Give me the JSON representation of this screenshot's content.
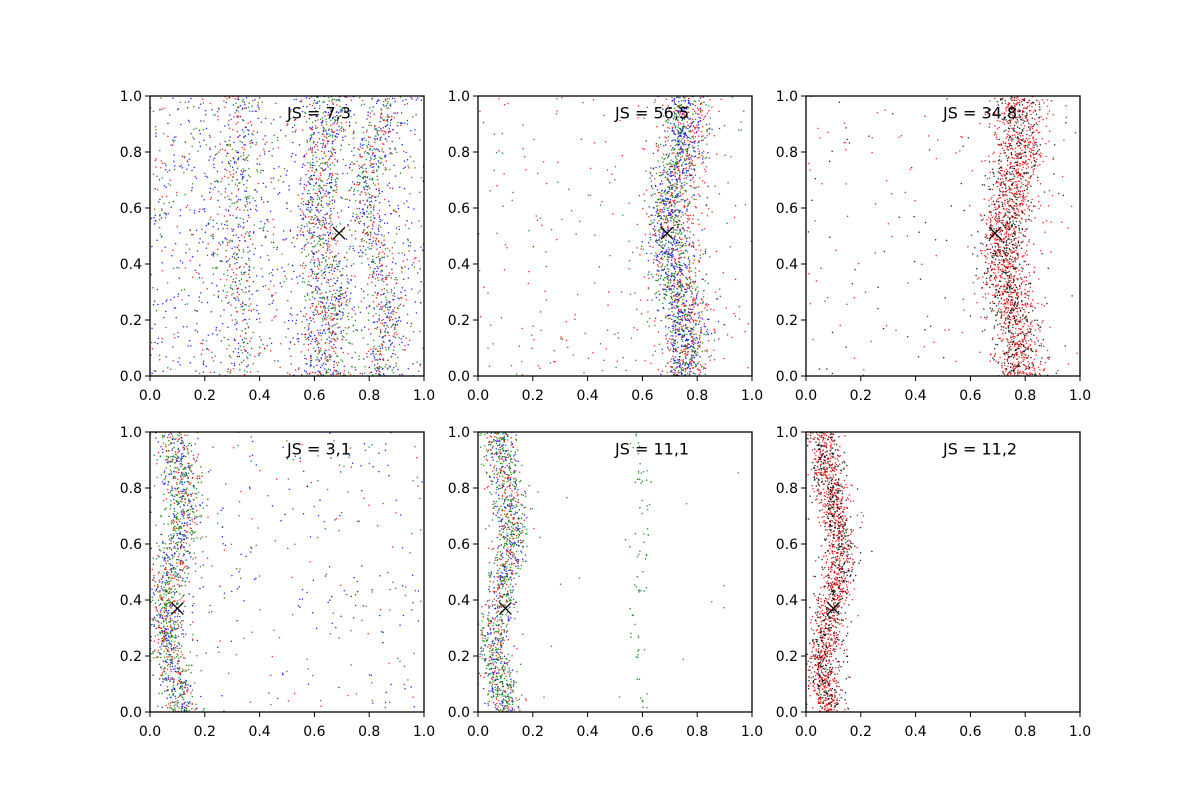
{
  "chart_data": {
    "type": "scatter",
    "description_note": "",
    "axes": {
      "xlim": [
        0,
        1
      ],
      "ylim": [
        0,
        1
      ],
      "ticks": [
        0.0,
        0.2,
        0.4,
        0.6,
        0.8,
        1.0
      ],
      "tick_labels": [
        "0.0",
        "0.2",
        "0.4",
        "0.6",
        "0.8",
        "1.0"
      ],
      "grid": false
    },
    "colors": {
      "red": "#ff0000",
      "green": "#008000",
      "blue": "#0000ff",
      "black": "#000000"
    },
    "panels": [
      {
        "annotation": "JS = 7,3",
        "marker": {
          "x": 0.69,
          "y": 0.51
        },
        "bands": [
          {
            "center": 0.6,
            "width": 0.03,
            "amp": 0.01,
            "n": 400,
            "colors": [
              "green",
              "blue",
              "red"
            ]
          },
          {
            "center": 0.66,
            "width": 0.03,
            "amp": 0.02,
            "n": 550,
            "colors": [
              "green",
              "blue",
              "red"
            ]
          },
          {
            "center": 0.83,
            "width": 0.035,
            "amp": 0.04,
            "n": 650,
            "colors": [
              "green",
              "blue",
              "red"
            ]
          },
          {
            "center": 0.34,
            "width": 0.03,
            "amp": 0.015,
            "n": 220,
            "colors": [
              "green",
              "blue",
              "red"
            ]
          },
          {
            "center": 0.29,
            "width": 0.03,
            "amp": 0.015,
            "n": 160,
            "colors": [
              "green",
              "blue",
              "red"
            ]
          }
        ],
        "background": {
          "n": 1300,
          "colors": [
            "blue",
            "blue",
            "green",
            "red"
          ]
        }
      },
      {
        "annotation": "JS = 56,5",
        "marker": {
          "x": 0.69,
          "y": 0.51
        },
        "bands": [
          {
            "center": 0.74,
            "width": 0.05,
            "amp": 0.03,
            "n": 1300,
            "colors": [
              "red",
              "red",
              "blue",
              "green"
            ]
          },
          {
            "center": 0.72,
            "width": 0.03,
            "amp": 0.03,
            "n": 700,
            "colors": [
              "green",
              "blue"
            ]
          }
        ],
        "background": {
          "n": 260,
          "colors": [
            "red",
            "green",
            "red"
          ]
        }
      },
      {
        "annotation": "JS = 34,8",
        "marker": {
          "x": 0.69,
          "y": 0.51
        },
        "bands": [
          {
            "center": 0.76,
            "width": 0.05,
            "amp": 0.03,
            "n": 1400,
            "colors": [
              "red",
              "red",
              "black"
            ]
          },
          {
            "center": 0.74,
            "width": 0.035,
            "amp": 0.03,
            "n": 600,
            "colors": [
              "black",
              "red"
            ]
          }
        ],
        "background": {
          "n": 190,
          "colors": [
            "red",
            "black",
            "red"
          ]
        }
      },
      {
        "annotation": "JS = 3,1",
        "marker": {
          "x": 0.1,
          "y": 0.37
        },
        "bands": [
          {
            "center": 0.09,
            "width": 0.035,
            "amp": 0.03,
            "n": 1300,
            "colors": [
              "green",
              "green",
              "blue",
              "red"
            ]
          }
        ],
        "background": {
          "n": 330,
          "colors": [
            "blue",
            "green",
            "red",
            "blue"
          ]
        }
      },
      {
        "annotation": "JS = 11,1",
        "marker": {
          "x": 0.1,
          "y": 0.37
        },
        "bands": [
          {
            "center": 0.09,
            "width": 0.032,
            "amp": 0.03,
            "n": 1300,
            "colors": [
              "green",
              "green",
              "blue",
              "red"
            ]
          },
          {
            "center": 0.59,
            "width": 0.018,
            "amp": 0.015,
            "n": 70,
            "colors": [
              "green"
            ]
          }
        ],
        "background": {
          "n": 20,
          "colors": [
            "green"
          ]
        }
      },
      {
        "annotation": "JS = 11,2",
        "marker": {
          "x": 0.1,
          "y": 0.37
        },
        "bands": [
          {
            "center": 0.09,
            "width": 0.03,
            "amp": 0.03,
            "n": 1200,
            "colors": [
              "red",
              "red",
              "black"
            ]
          },
          {
            "center": 0.1,
            "width": 0.035,
            "amp": 0.03,
            "n": 500,
            "colors": [
              "black",
              "black",
              "red"
            ]
          }
        ],
        "background": {
          "n": 2,
          "colors": [
            "black"
          ]
        }
      }
    ]
  }
}
